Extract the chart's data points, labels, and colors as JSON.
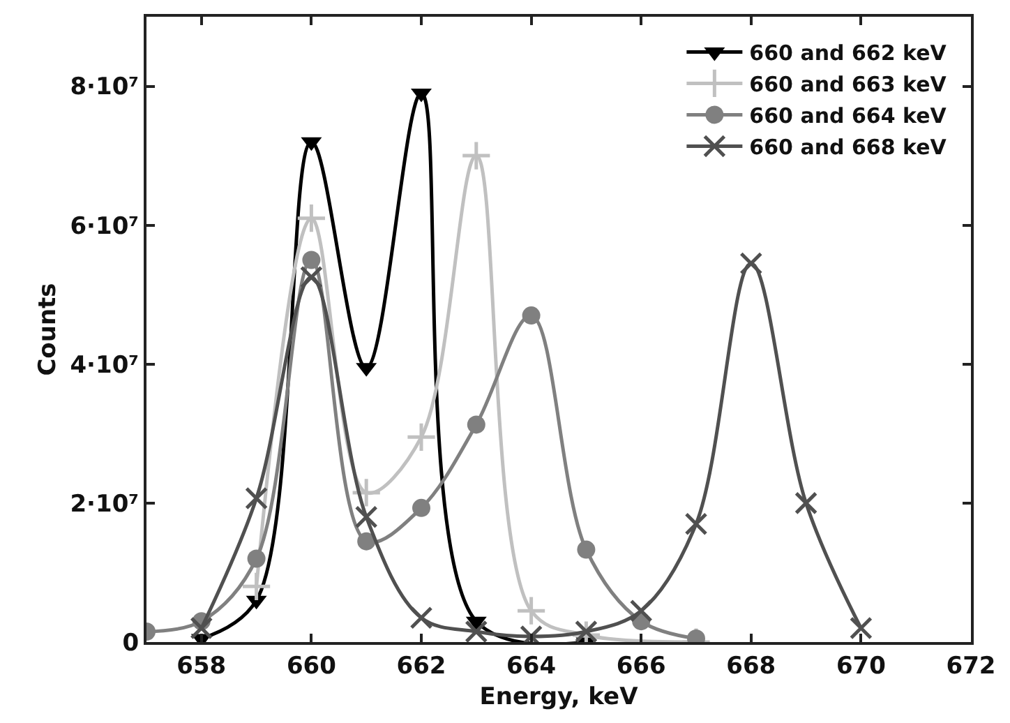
{
  "chart_data": {
    "type": "line",
    "xlabel": "Energy, keV",
    "ylabel": "Counts",
    "xlim": [
      657,
      672
    ],
    "xticks": [
      658,
      660,
      662,
      664,
      666,
      668,
      670,
      672
    ],
    "ylim": [
      0,
      90000000
    ],
    "yticks": [
      0,
      {
        "value": 20000000,
        "label": "2·10⁷"
      },
      {
        "value": 40000000,
        "label": "4·10⁷"
      },
      {
        "value": 60000000,
        "label": "6·10⁷"
      },
      {
        "value": 80000000,
        "label": "8·10⁷"
      }
    ],
    "grid": false,
    "legend": "top right",
    "line_style": "solid",
    "series": [
      {
        "name": "660 and 662 keV",
        "color": "#000000",
        "marker": "triangle",
        "x": [
          658,
          659,
          660,
          661,
          662,
          663,
          665
        ],
        "values": [
          500000,
          6000000,
          72000000,
          39500000,
          79000000,
          3000000,
          0
        ]
      },
      {
        "name": "660 and 663 keV",
        "color": "#c0c0c0",
        "marker": "cross",
        "x": [
          659,
          660,
          661,
          662,
          663,
          664,
          665,
          667
        ],
        "values": [
          8000000,
          61000000,
          21500000,
          29500000,
          70000000,
          4500000,
          1000000,
          0
        ]
      },
      {
        "name": "660 and 664 keV",
        "color": "#808080",
        "marker": "circle",
        "x": [
          657,
          658,
          659,
          660,
          661,
          662,
          663,
          664,
          665,
          666,
          667
        ],
        "values": [
          1500000,
          3000000,
          12000000,
          55000000,
          14500000,
          19300000,
          31300000,
          47000000,
          13300000,
          3000000,
          500000
        ]
      },
      {
        "name": "660 and 668 keV",
        "color": "#505050",
        "marker": "x",
        "x": [
          658,
          659,
          660,
          661,
          662,
          663,
          664,
          665,
          666,
          667,
          668,
          669,
          670
        ],
        "values": [
          2000000,
          20700000,
          52500000,
          18000000,
          3500000,
          1500000,
          800000,
          1500000,
          4500000,
          17000000,
          54500000,
          20000000,
          2000000
        ]
      }
    ]
  }
}
